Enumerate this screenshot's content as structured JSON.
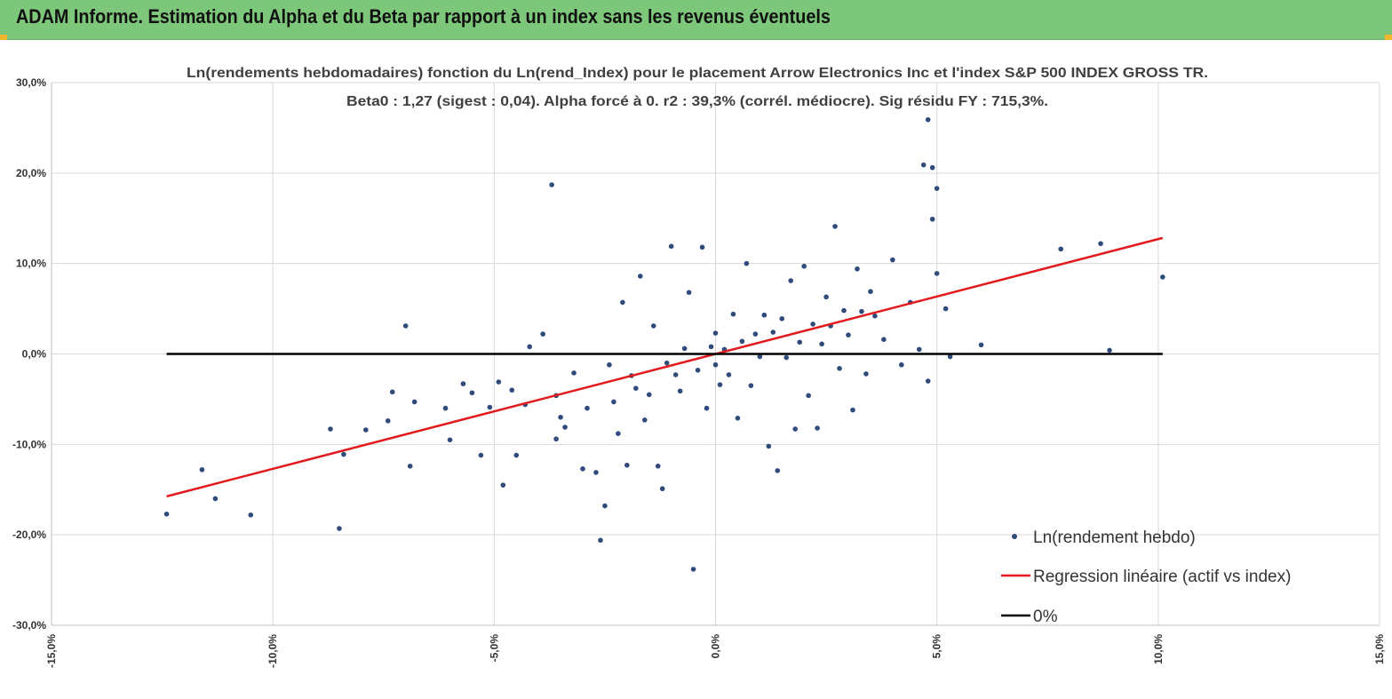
{
  "header": {
    "title": "ADAM Informe. Estimation du Alpha et du Beta par rapport à un index sans les revenus éventuels"
  },
  "chart_data": {
    "type": "scatter",
    "title": "Ln(rendements hebdomadaires) fonction du Ln(rend_Index) pour le placement Arrow Electronics Inc et l'index S&P 500 INDEX GROSS TR.",
    "subtitle": "Beta0 : 1,27 (sigest : 0,04). Alpha forcé à 0. r2 : 39,3% (corrél. médiocre). Sig résidu FY : 715,3%.",
    "xlim": [
      -15,
      15
    ],
    "ylim": [
      -30,
      30
    ],
    "x_ticks": [
      -15,
      -10,
      -5,
      0,
      5,
      10,
      15
    ],
    "y_ticks": [
      30,
      20,
      10,
      0,
      -10,
      -20,
      -30
    ],
    "x_tick_labels": [
      "-15,0%",
      "-10,0%",
      "-5,0%",
      "0,0%",
      "5,0%",
      "10,0%",
      "15,0%"
    ],
    "y_tick_labels": [
      "30,0%",
      "20,0%",
      "10,0%",
      "0,0%",
      "-10,0%",
      "-20,0%",
      "-30,0%"
    ],
    "grid": true,
    "legend_position": "bottom-right",
    "colors": {
      "points": "#2f4b7c",
      "regression": "#e31a1c",
      "zero": "#000000",
      "grid": "#d9d9d9"
    },
    "series": [
      {
        "name": "Ln(rendement hebdo)",
        "kind": "scatter",
        "points": [
          [
            -12.4,
            -17.7
          ],
          [
            -11.6,
            -12.8
          ],
          [
            -11.3,
            -16.0
          ],
          [
            -10.5,
            -17.8
          ],
          [
            -8.7,
            -8.3
          ],
          [
            -8.5,
            -19.3
          ],
          [
            -8.4,
            -11.1
          ],
          [
            -7.9,
            -8.4
          ],
          [
            -7.4,
            -7.4
          ],
          [
            -7.3,
            -4.2
          ],
          [
            -7.0,
            3.1
          ],
          [
            -6.9,
            -12.4
          ],
          [
            -6.8,
            -5.3
          ],
          [
            -6.1,
            -6.0
          ],
          [
            -6.0,
            -9.5
          ],
          [
            -5.7,
            -3.3
          ],
          [
            -5.5,
            -4.3
          ],
          [
            -5.3,
            -11.2
          ],
          [
            -5.1,
            -5.9
          ],
          [
            -4.9,
            -3.1
          ],
          [
            -4.8,
            -14.5
          ],
          [
            -4.6,
            -4.0
          ],
          [
            -4.5,
            -11.2
          ],
          [
            -4.3,
            -5.6
          ],
          [
            -4.2,
            0.8
          ],
          [
            -3.9,
            2.2
          ],
          [
            -3.7,
            18.7
          ],
          [
            -3.6,
            -4.6
          ],
          [
            -3.6,
            -9.4
          ],
          [
            -3.5,
            -7.0
          ],
          [
            -3.4,
            -8.1
          ],
          [
            -3.2,
            -2.1
          ],
          [
            -3.0,
            -12.7
          ],
          [
            -2.9,
            -6.0
          ],
          [
            -2.7,
            -13.1
          ],
          [
            -2.6,
            -20.6
          ],
          [
            -2.5,
            -16.8
          ],
          [
            -2.4,
            -1.2
          ],
          [
            -2.3,
            -5.3
          ],
          [
            -2.2,
            -8.8
          ],
          [
            -2.1,
            5.7
          ],
          [
            -2.0,
            -12.3
          ],
          [
            -1.9,
            -2.4
          ],
          [
            -1.8,
            -3.8
          ],
          [
            -1.7,
            8.6
          ],
          [
            -1.6,
            -7.3
          ],
          [
            -1.5,
            -4.5
          ],
          [
            -1.4,
            3.1
          ],
          [
            -1.3,
            -12.4
          ],
          [
            -1.2,
            -14.9
          ],
          [
            -1.1,
            -1.0
          ],
          [
            -1.0,
            11.9
          ],
          [
            -0.9,
            -2.3
          ],
          [
            -0.8,
            -4.1
          ],
          [
            -0.7,
            0.6
          ],
          [
            -0.6,
            6.8
          ],
          [
            -0.5,
            -23.8
          ],
          [
            -0.4,
            -1.8
          ],
          [
            -0.3,
            11.8
          ],
          [
            -0.2,
            -6.0
          ],
          [
            -0.1,
            0.8
          ],
          [
            0.0,
            -1.2
          ],
          [
            0.0,
            2.3
          ],
          [
            0.1,
            -3.4
          ],
          [
            0.2,
            0.5
          ],
          [
            0.3,
            -2.3
          ],
          [
            0.4,
            4.4
          ],
          [
            0.5,
            -7.1
          ],
          [
            0.6,
            1.4
          ],
          [
            0.7,
            10.0
          ],
          [
            0.8,
            -3.5
          ],
          [
            0.9,
            2.2
          ],
          [
            1.0,
            -0.3
          ],
          [
            1.1,
            4.3
          ],
          [
            1.2,
            -10.2
          ],
          [
            1.3,
            2.4
          ],
          [
            1.4,
            -12.9
          ],
          [
            1.5,
            3.9
          ],
          [
            1.6,
            -0.4
          ],
          [
            1.7,
            8.1
          ],
          [
            1.8,
            -8.3
          ],
          [
            1.9,
            1.3
          ],
          [
            2.0,
            9.7
          ],
          [
            2.1,
            -4.6
          ],
          [
            2.2,
            3.3
          ],
          [
            2.3,
            -8.2
          ],
          [
            2.4,
            1.1
          ],
          [
            2.5,
            6.3
          ],
          [
            2.6,
            3.1
          ],
          [
            2.7,
            14.1
          ],
          [
            2.8,
            -1.6
          ],
          [
            2.9,
            4.8
          ],
          [
            3.0,
            2.1
          ],
          [
            3.1,
            -6.2
          ],
          [
            3.2,
            9.4
          ],
          [
            3.3,
            4.7
          ],
          [
            3.4,
            -2.2
          ],
          [
            3.5,
            6.9
          ],
          [
            3.6,
            4.2
          ],
          [
            3.8,
            1.6
          ],
          [
            4.0,
            10.4
          ],
          [
            4.2,
            -1.2
          ],
          [
            4.4,
            5.7
          ],
          [
            4.6,
            0.5
          ],
          [
            4.7,
            20.9
          ],
          [
            4.8,
            -3.0
          ],
          [
            4.8,
            25.9
          ],
          [
            4.9,
            14.9
          ],
          [
            4.9,
            20.6
          ],
          [
            5.0,
            18.3
          ],
          [
            5.0,
            8.9
          ],
          [
            5.2,
            5.0
          ],
          [
            5.3,
            -0.3
          ],
          [
            6.0,
            1.0
          ],
          [
            7.8,
            11.6
          ],
          [
            8.7,
            12.2
          ],
          [
            8.9,
            0.4
          ],
          [
            10.1,
            8.5
          ]
        ]
      },
      {
        "name": "Regression linéaire (actif vs index)",
        "kind": "line",
        "slope": 1.27,
        "x_range": [
          -12.4,
          10.1
        ]
      },
      {
        "name": "0%",
        "kind": "line",
        "slope": 0,
        "x_range": [
          -12.4,
          10.1
        ]
      }
    ]
  }
}
